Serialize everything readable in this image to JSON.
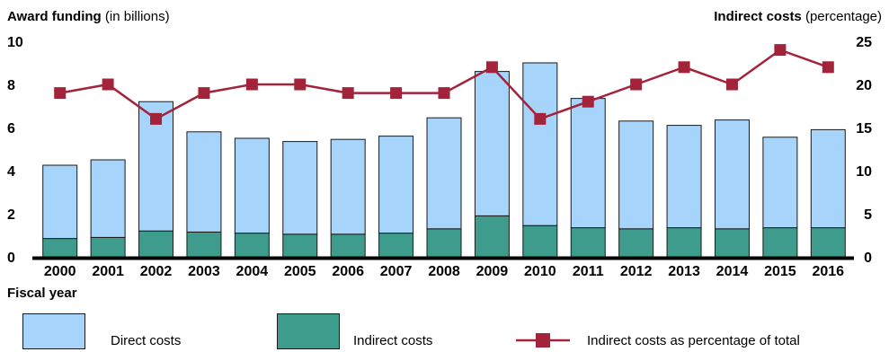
{
  "left_title": {
    "bold": "Award funding",
    "rest": " (in billions)"
  },
  "right_title": {
    "bold": "Indirect costs",
    "rest": " (percentage)"
  },
  "xlabel": "Fiscal year",
  "legend": [
    {
      "label": "Direct costs",
      "color": "#a6d4fb"
    },
    {
      "label": "Indirect costs",
      "color": "#3e9c8c"
    },
    {
      "label": "Indirect costs as percentage of total",
      "color": "#a3233a"
    }
  ],
  "chart_data": {
    "type": "bar",
    "stacked": true,
    "categories": [
      "2000",
      "2001",
      "2002",
      "2003",
      "2004",
      "2005",
      "2006",
      "2007",
      "2008",
      "2009",
      "2010",
      "2011",
      "2012",
      "2013",
      "2014",
      "2015",
      "2016"
    ],
    "series": [
      {
        "name": "Indirect costs",
        "axis": "left",
        "color": "#3e9c8c",
        "values": [
          0.85,
          0.9,
          1.2,
          1.15,
          1.1,
          1.05,
          1.05,
          1.1,
          1.3,
          1.9,
          1.45,
          1.35,
          1.3,
          1.35,
          1.3,
          1.35,
          1.35
        ]
      },
      {
        "name": "Direct costs",
        "axis": "left",
        "color": "#a6d4fb",
        "values": [
          3.4,
          3.6,
          6.0,
          4.65,
          4.4,
          4.3,
          4.4,
          4.5,
          5.15,
          6.7,
          7.55,
          6.0,
          5.0,
          4.75,
          5.05,
          4.2,
          4.55
        ]
      },
      {
        "name": "Indirect costs as percentage of total",
        "axis": "right",
        "type": "line",
        "color": "#a3233a",
        "values": [
          19,
          20,
          16,
          19,
          20,
          20,
          19,
          19,
          19,
          22,
          16,
          18,
          20,
          22,
          20,
          24,
          22
        ]
      }
    ],
    "ylim_left": [
      0,
      10
    ],
    "yticks_left": [
      0,
      2,
      4,
      6,
      8,
      10
    ],
    "ylim_right": [
      0,
      25
    ],
    "yticks_right": [
      0,
      5,
      10,
      15,
      20,
      25
    ],
    "grid": false,
    "legend_position": "bottom"
  }
}
